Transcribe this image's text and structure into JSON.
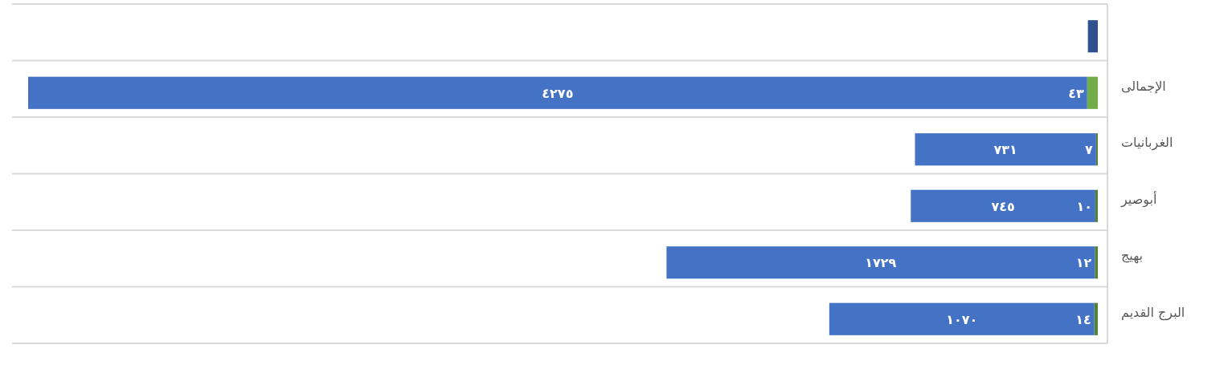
{
  "chart_data": {
    "type": "bar",
    "orientation": "horizontal",
    "stacked": true,
    "grid": "y",
    "categories": [
      null,
      "الإجمالى",
      "الغربانيات",
      "أبوصير",
      "بهيج",
      "البرج القديم"
    ],
    "series": [
      {
        "colors": [
          null,
          "#70ad47",
          "#548235",
          "#548235",
          "#548235",
          "#548235"
        ],
        "values": [
          null,
          43,
          7,
          10,
          12,
          14
        ],
        "value_labels": [
          null,
          "٤٣",
          "٧",
          "١٠",
          "١٢",
          "١٤"
        ]
      },
      {
        "color": "#4472c4",
        "values": [
          null,
          4275,
          731,
          745,
          1729,
          1070
        ],
        "value_labels": [
          null,
          "٤٢٧٥",
          "٧٣١",
          "٧٤٥",
          "١٧٢٩",
          "١٠٧٠"
        ]
      },
      {
        "color": "#2f528f",
        "values": [
          40,
          null,
          null,
          null,
          null,
          null
        ],
        "value_labels": [
          null,
          null,
          null,
          null,
          null,
          null
        ]
      }
    ]
  }
}
